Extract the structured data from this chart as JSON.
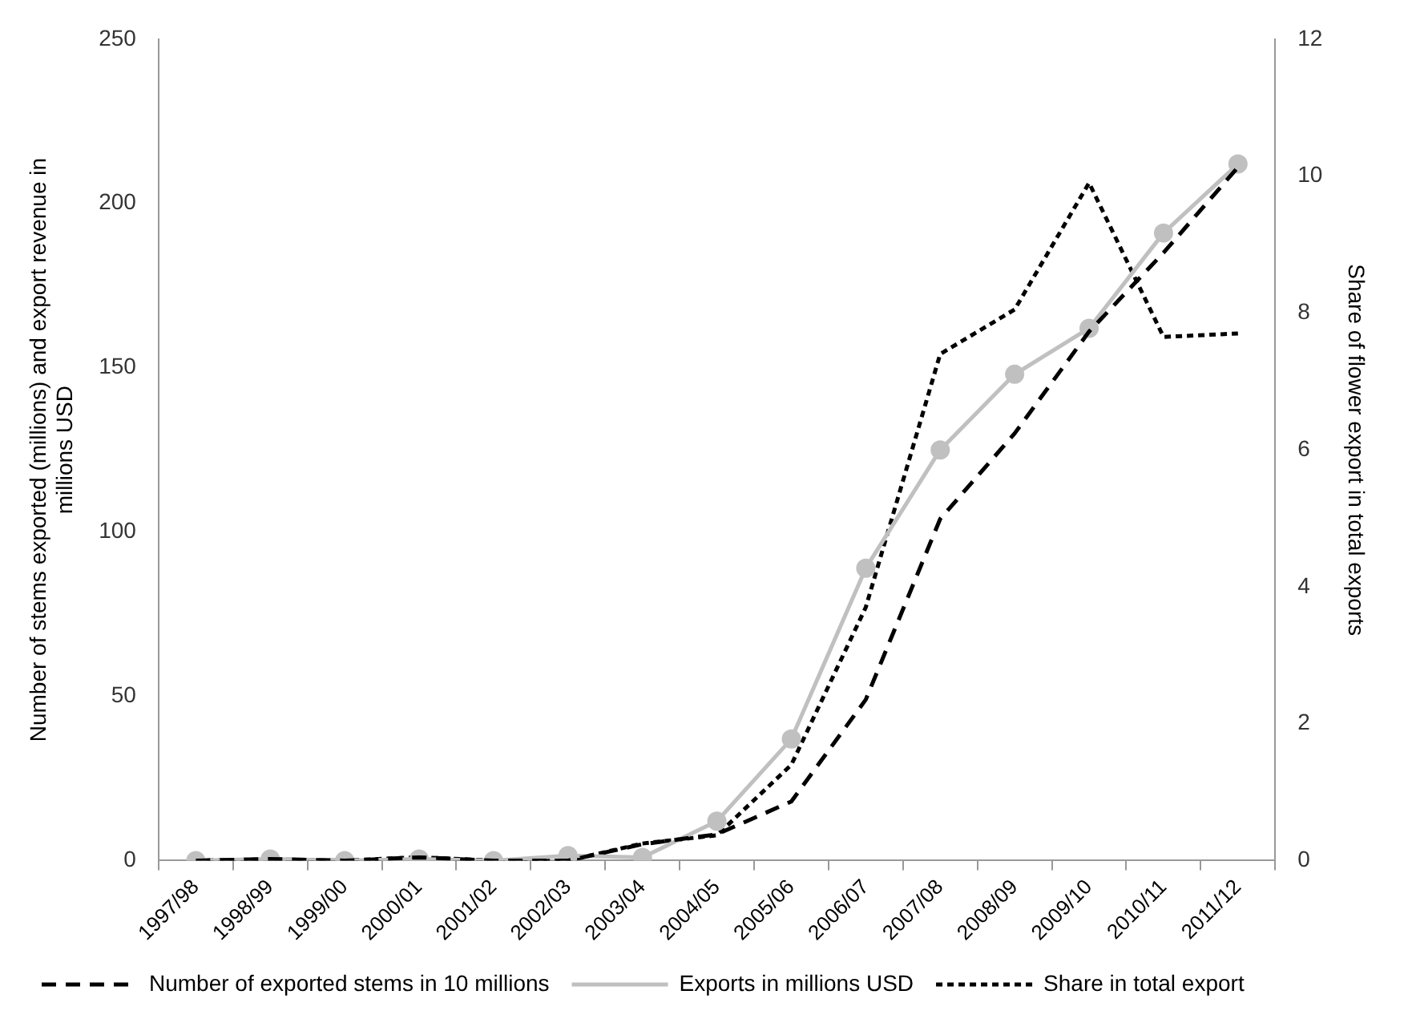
{
  "chart_data": {
    "type": "line",
    "ylabel": "Number of stems exported (millions) and export revenue in millions USD",
    "y2label": "Share of flower export in total exports",
    "categories": [
      "1997/98",
      "1998/99",
      "1999/00",
      "2000/01",
      "2001/02",
      "2002/03",
      "2003/04",
      "2004/05",
      "2005/06",
      "2006/07",
      "2007/08",
      "2008/09",
      "2009/10",
      "2010/11",
      "2011/12"
    ],
    "series": [
      {
        "name": "Number of exported stems in 10 millions",
        "color": "#000000",
        "line_style": "dashed",
        "marker": "none",
        "values": [
          0,
          0.5,
          0,
          1,
          0,
          0,
          5,
          8,
          18,
          49,
          104,
          130,
          161,
          185,
          211
        ]
      },
      {
        "name": "Exports in millions USD",
        "color": "#c0c0c0",
        "line_style": "solid",
        "marker": "circle",
        "values": [
          0,
          0.5,
          0,
          0.5,
          0,
          1.5,
          1,
          12,
          37,
          89,
          125,
          148,
          162,
          191,
          212
        ]
      },
      {
        "name": "Share in total export",
        "color": "#000000",
        "line_style": "dotted",
        "marker": "none",
        "axis": "y2",
        "values": [
          0,
          0.02,
          0,
          0.05,
          0,
          0,
          0.25,
          0.37,
          1.4,
          3.7,
          7.4,
          8.05,
          9.9,
          7.65,
          7.7
        ]
      }
    ],
    "ylim": [
      0,
      250
    ],
    "yticks": [
      0,
      50,
      100,
      150,
      200,
      250
    ],
    "y2lim": [
      0,
      12
    ],
    "y2ticks": [
      0,
      2,
      4,
      6,
      8,
      10,
      12
    ],
    "grid": false,
    "legend": "bottom"
  }
}
